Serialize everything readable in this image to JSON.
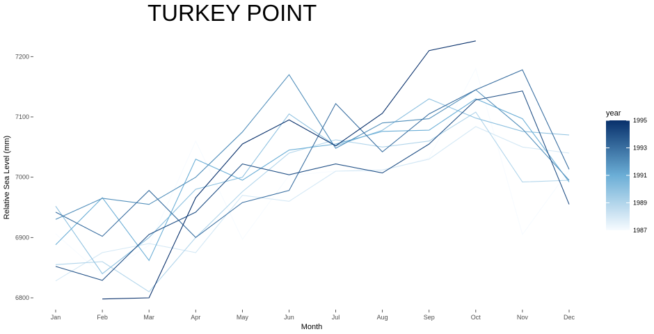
{
  "chart_data": {
    "type": "line",
    "title": "TURKEY POINT",
    "xlabel": "Month",
    "ylabel": "Relative Sea Level (mm)",
    "categories": [
      "Jan",
      "Feb",
      "Mar",
      "Apr",
      "May",
      "Jun",
      "Jul",
      "Aug",
      "Sep",
      "Oct",
      "Nov",
      "Dec"
    ],
    "y_ticks": [
      6800,
      6900,
      7000,
      7100,
      7200
    ],
    "ylim": [
      6792,
      7232
    ],
    "legend": {
      "title": "year",
      "position": "right",
      "ticks": [
        1987,
        1989,
        1991,
        1993,
        1995
      ],
      "range": [
        1987,
        1995
      ],
      "color_low": "#f7fbff",
      "color_high": "#08306b"
    },
    "grid": false,
    "series": [
      {
        "year": 1987,
        "values": [
          6906,
          6838,
          6887,
          7060,
          6897,
          7003,
          7010,
          7010,
          7032,
          7180,
          6905,
          7012
        ]
      },
      {
        "year": 1988,
        "values": [
          6828,
          6875,
          6890,
          6875,
          6970,
          6960,
          7010,
          7012,
          7030,
          7084,
          7050,
          7040
        ]
      },
      {
        "year": 1989,
        "values": [
          6855,
          6860,
          6810,
          6900,
          6976,
          7040,
          7062,
          7050,
          7060,
          7108,
          6992,
          6995
        ]
      },
      {
        "year": 1990,
        "values": [
          6952,
          6840,
          6900,
          6980,
          7000,
          7105,
          7052,
          7078,
          7130,
          7098,
          7076,
          7070
        ]
      },
      {
        "year": 1991,
        "values": [
          6888,
          6966,
          6862,
          7030,
          6995,
          7045,
          7055,
          7076,
          7078,
          7130,
          7097,
          6992
        ]
      },
      {
        "year": 1992,
        "values": [
          6930,
          6965,
          6955,
          7000,
          7075,
          7170,
          7048,
          7090,
          7097,
          7145,
          7080,
          6995
        ]
      },
      {
        "year": 1993,
        "values": [
          6942,
          6902,
          6978,
          6900,
          6958,
          6978,
          7122,
          7042,
          7105,
          7145,
          7178,
          7013
        ]
      },
      {
        "year": 1994,
        "values": [
          6852,
          6829,
          6905,
          6942,
          7022,
          7004,
          7022,
          7007,
          7055,
          7128,
          7143,
          6955
        ]
      },
      {
        "year": 1995,
        "values": [
          null,
          6798,
          6800,
          6966,
          7055,
          7095,
          7052,
          7106,
          7210,
          7226,
          null,
          null
        ]
      }
    ]
  }
}
